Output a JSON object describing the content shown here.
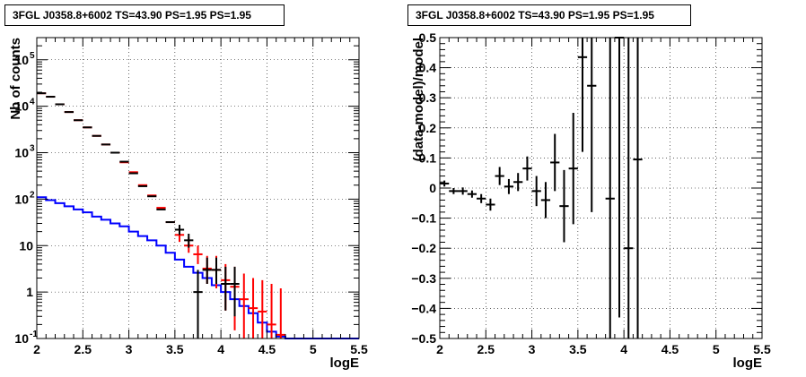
{
  "chart_data": [
    {
      "type": "line",
      "title": "3FGL J0358.8+6002 TS=43.90 PS=1.95 PS=1.95",
      "xlabel": "logE",
      "ylabel": "Nb of counts",
      "yscale": "log",
      "xlim": [
        2,
        5.5
      ],
      "ylim": [
        0.1,
        300000
      ],
      "grid": true,
      "x_ticks": [
        "2",
        "2.5",
        "3",
        "3.5",
        "4",
        "4.5",
        "5",
        "5.5"
      ],
      "y_ticks": [
        {
          "value": 0.1,
          "base": "10",
          "exp": "-1"
        },
        {
          "value": 1,
          "base": "1",
          "exp": ""
        },
        {
          "value": 10,
          "base": "10",
          "exp": ""
        },
        {
          "value": 100,
          "base": "10",
          "exp": "2"
        },
        {
          "value": 1000,
          "base": "10",
          "exp": "3"
        },
        {
          "value": 10000,
          "base": "10",
          "exp": "4"
        },
        {
          "value": 100000,
          "base": "10",
          "exp": "5"
        }
      ],
      "series": [
        {
          "color": "#0000ff",
          "style": "step",
          "bin_edges": [
            2.0,
            2.1,
            2.2,
            2.3,
            2.4,
            2.5,
            2.6,
            2.7,
            2.8,
            2.9,
            3.0,
            3.1,
            3.2,
            3.3,
            3.4,
            3.5,
            3.6,
            3.7,
            3.8,
            3.9,
            4.0,
            4.1,
            4.2,
            4.3,
            4.4,
            4.5,
            4.6,
            4.7,
            5.5
          ],
          "values": [
            110,
            95,
            82,
            70,
            60,
            52,
            42,
            36,
            30,
            26,
            20,
            16,
            13,
            10,
            7,
            5,
            3.5,
            2.6,
            2,
            1.4,
            1.0,
            0.7,
            0.5,
            0.35,
            0.22,
            0.14,
            0.11,
            0.1
          ]
        },
        {
          "color": "#ff0000",
          "style": "errorbar",
          "x": [
            2.05,
            2.15,
            2.25,
            2.35,
            2.45,
            2.55,
            2.65,
            2.75,
            2.85,
            2.95,
            3.05,
            3.15,
            3.25,
            3.35,
            3.45,
            3.55,
            3.65,
            3.75,
            3.85,
            3.95,
            4.05,
            4.15,
            4.25,
            4.35,
            4.45,
            4.55,
            4.65
          ],
          "y": [
            19000,
            16000,
            11000,
            7500,
            5000,
            3500,
            2300,
            1500,
            1000,
            620,
            380,
            200,
            120,
            65,
            32,
            17,
            10,
            6.5,
            3.2,
            3,
            1.8,
            1.3,
            0.7,
            0.45,
            0.38,
            0.2,
            0.12
          ],
          "y_low": [
            19000,
            16000,
            11000,
            7500,
            5000,
            3500,
            2300,
            1500,
            1000,
            620,
            380,
            200,
            120,
            65,
            32,
            12,
            7,
            4,
            1.5,
            1.2,
            0.4,
            0.15,
            0.1,
            0.1,
            0.1,
            0.1,
            0.1
          ],
          "y_high": [
            19000,
            16000,
            11000,
            7500,
            5000,
            3500,
            2300,
            1500,
            1000,
            620,
            380,
            200,
            120,
            65,
            32,
            24,
            15,
            10,
            6,
            6,
            4,
            3.5,
            2.5,
            2,
            1.8,
            1.5,
            1.2
          ]
        },
        {
          "color": "#000000",
          "style": "errorbar",
          "x": [
            2.05,
            2.15,
            2.25,
            2.35,
            2.45,
            2.55,
            2.65,
            2.75,
            2.85,
            2.95,
            3.05,
            3.15,
            3.25,
            3.35,
            3.45,
            3.55,
            3.65,
            3.75,
            3.85,
            3.95,
            4.05,
            4.15
          ],
          "y": [
            19000,
            16000,
            11000,
            7500,
            5000,
            3500,
            2300,
            1500,
            1000,
            640,
            360,
            190,
            115,
            60,
            32,
            22,
            13,
            1,
            3,
            3,
            1.5,
            1.5
          ],
          "y_low": [
            19000,
            16000,
            11000,
            7500,
            5000,
            3500,
            2300,
            1500,
            1000,
            640,
            360,
            190,
            115,
            60,
            32,
            17,
            9,
            0.1,
            1.5,
            1.5,
            0.4,
            0.3
          ],
          "y_high": [
            19000,
            16000,
            11000,
            7500,
            5000,
            3500,
            2300,
            1500,
            1000,
            640,
            360,
            190,
            115,
            60,
            32,
            28,
            18,
            3,
            5.5,
            5.5,
            3.5,
            3.5
          ]
        }
      ]
    },
    {
      "type": "scatter",
      "title": "3FGL J0358.8+6002 TS=43.90 PS=1.95 PS=1.95",
      "xlabel": "logE",
      "ylabel": "(data-model)/model",
      "xlim": [
        2,
        5.5
      ],
      "ylim": [
        -0.5,
        0.5
      ],
      "grid": true,
      "x_ticks": [
        "2",
        "2.5",
        "3",
        "3.5",
        "4",
        "4.5",
        "5",
        "5.5"
      ],
      "y_ticks": [
        "−0.5",
        "−0.4",
        "−0.3",
        "−0.2",
        "−0.1",
        "0",
        "0.1",
        "0.2",
        "0.3",
        "0.4",
        "0.5"
      ],
      "series": [
        {
          "color": "#000000",
          "style": "errorbar",
          "x": [
            2.05,
            2.15,
            2.25,
            2.35,
            2.45,
            2.55,
            2.65,
            2.75,
            2.85,
            2.95,
            3.05,
            3.15,
            3.25,
            3.35,
            3.45,
            3.55,
            3.65,
            3.85,
            3.95,
            4.05,
            4.15
          ],
          "y": [
            0.015,
            -0.01,
            -0.01,
            -0.02,
            -0.035,
            -0.055,
            0.04,
            0.005,
            0.02,
            0.065,
            -0.01,
            -0.04,
            0.085,
            -0.06,
            0.065,
            0.435,
            0.34,
            -0.035,
            0.5,
            -0.2,
            0.095
          ],
          "y_low": [
            0.005,
            -0.02,
            -0.022,
            -0.032,
            -0.05,
            -0.075,
            0.01,
            -0.02,
            -0.01,
            0.025,
            -0.06,
            -0.1,
            -0.01,
            -0.18,
            -0.12,
            0.12,
            -0.08,
            -0.5,
            -0.43,
            -0.5,
            -0.5
          ],
          "y_high": [
            0.025,
            0.0,
            0.002,
            -0.008,
            -0.02,
            -0.035,
            0.07,
            0.03,
            0.05,
            0.105,
            0.04,
            0.02,
            0.18,
            0.06,
            0.25,
            0.5,
            0.5,
            0.5,
            0.5,
            0.5,
            0.5
          ]
        }
      ]
    }
  ]
}
